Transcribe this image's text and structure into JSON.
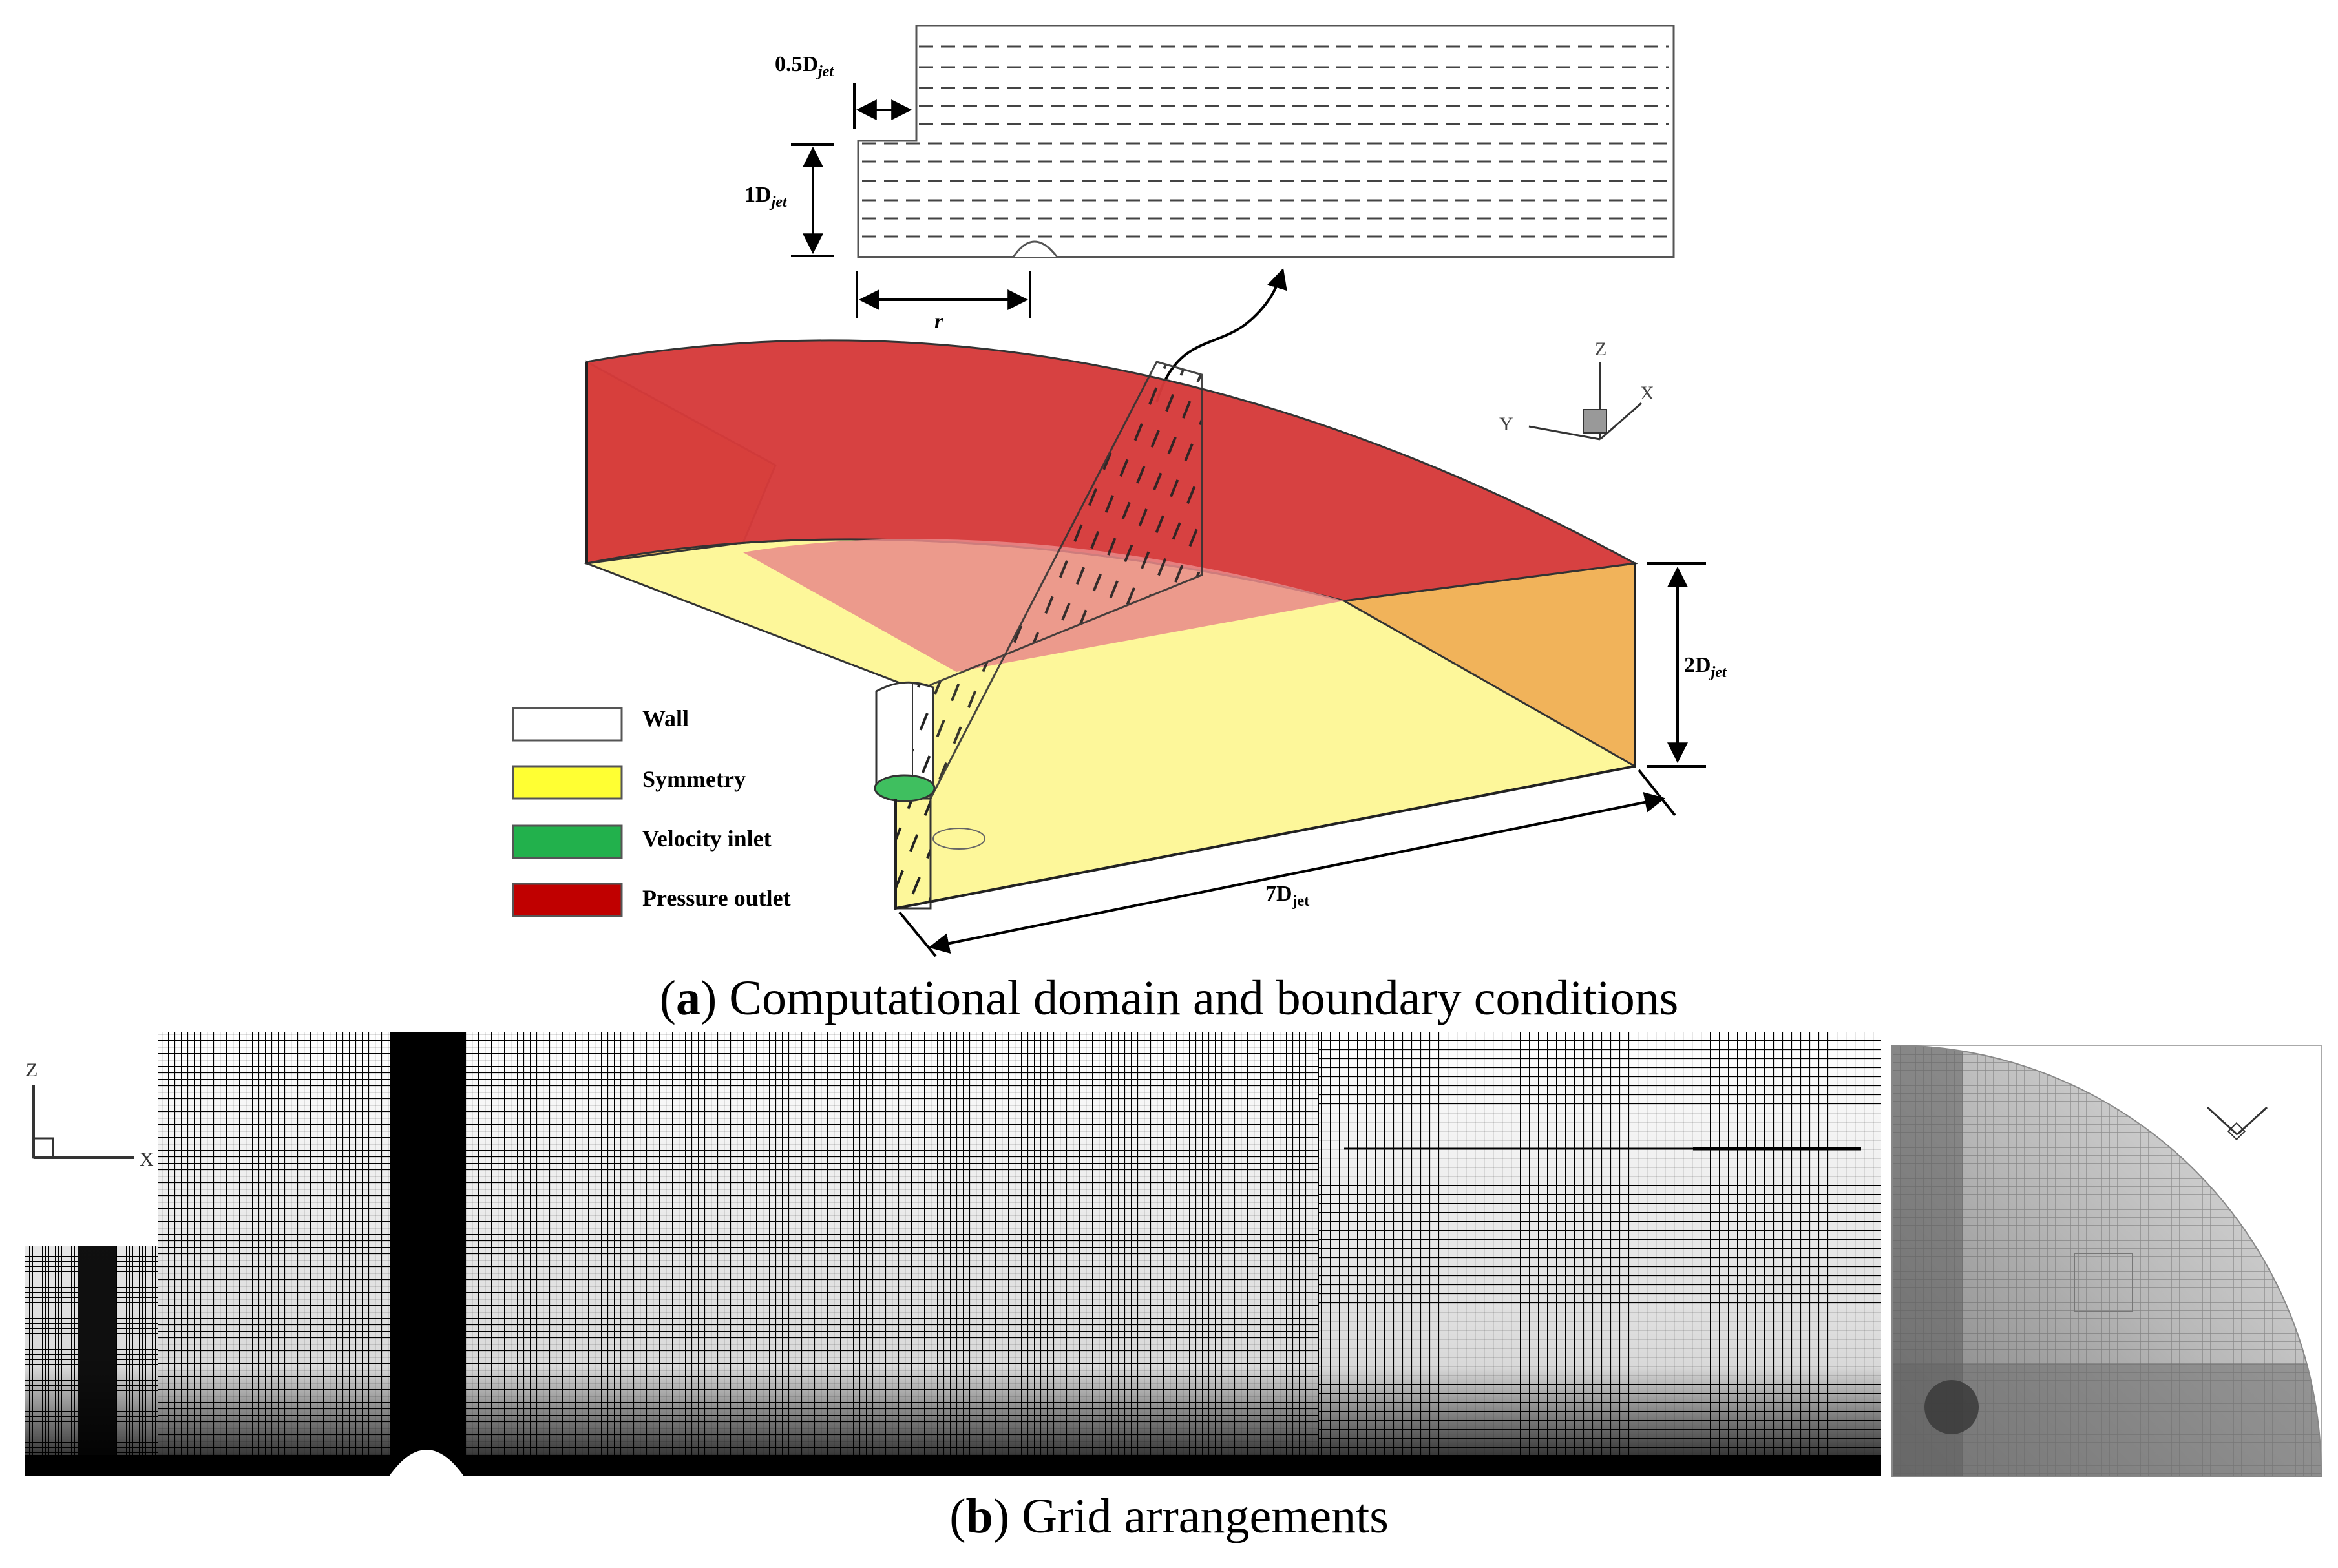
{
  "inset": {
    "label_half_d": "0.5D",
    "label_half_d_sub": "jet",
    "label_one_d": "1D",
    "label_one_d_sub": "jet",
    "label_r": "r"
  },
  "domain": {
    "label_height": "2D",
    "label_height_sub": "jet",
    "label_length": "7D",
    "label_length_sub": "jet"
  },
  "axes_a": {
    "z": "Z",
    "y": "Y",
    "x": "X"
  },
  "axes_b": {
    "z": "Z",
    "x": "X"
  },
  "legend": {
    "items": [
      {
        "label": "Wall",
        "color": "#ffffff"
      },
      {
        "label": "Symmetry",
        "color": "#ffff33"
      },
      {
        "label": "Velocity inlet",
        "color": "#22b14c"
      },
      {
        "label": "Pressure outlet",
        "color": "#c00000"
      }
    ]
  },
  "captions": {
    "a_open": "(",
    "a_letter": "a",
    "a_text": ") Computational domain and boundary conditions",
    "b_open": "(",
    "b_letter": "b",
    "b_text": ") Grid arrangements"
  },
  "colors": {
    "outlet": "#d63b3b",
    "side": "#f1b35a",
    "symmetry": "#fdf79a",
    "inlet": "#3fbf5f"
  }
}
